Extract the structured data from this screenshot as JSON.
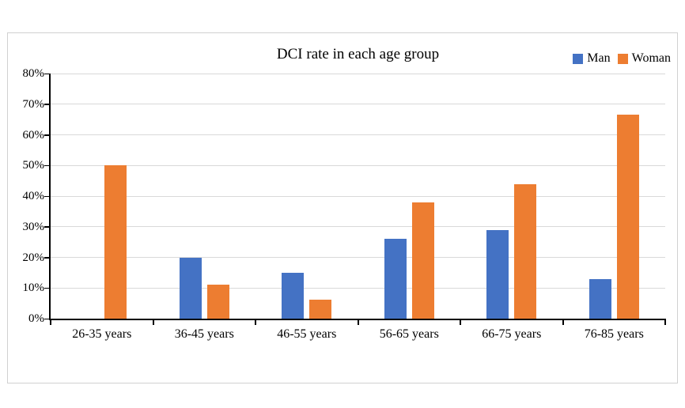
{
  "page": {
    "background": "#ffffff"
  },
  "chart_data": {
    "type": "bar",
    "title": "DCI rate in each age group",
    "categories": [
      "26-35 years",
      "36-45 years",
      "46-55 years",
      "56-65 years",
      "66-75 years",
      "76-85 years"
    ],
    "series": [
      {
        "name": "Man",
        "color": "#4472C4",
        "values": [
          0,
          20,
          15,
          26,
          29,
          13
        ]
      },
      {
        "name": "Woman",
        "color": "#ED7D31",
        "values": [
          50,
          11.1,
          6.3,
          38,
          44,
          66.7
        ]
      }
    ],
    "xlabel": "",
    "ylabel": "",
    "ylim": [
      0,
      80
    ],
    "ytick_step": 10,
    "ytick_labels": [
      "0%",
      "10%",
      "20%",
      "30%",
      "40%",
      "50%",
      "60%",
      "70%",
      "80%"
    ],
    "grid": true,
    "legend_position": "top-right",
    "gridline_color": "#d9d9d9",
    "axis_color": "#000000",
    "frame_border_color": "#d0d0d0"
  }
}
